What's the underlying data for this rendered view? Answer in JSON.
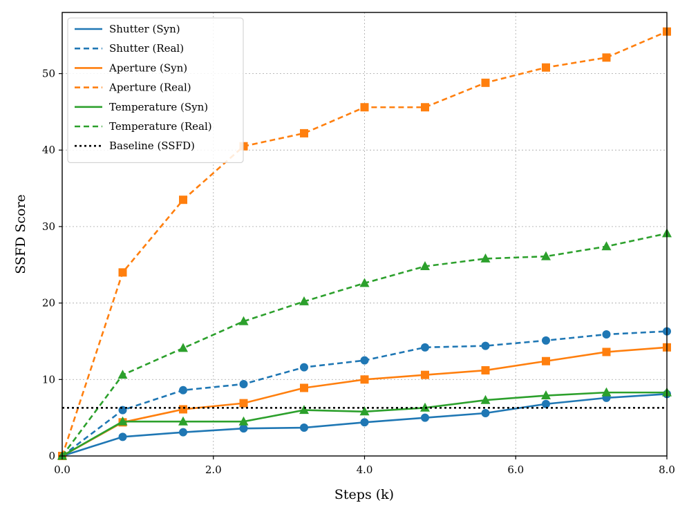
{
  "chart_data": {
    "type": "line",
    "title": "",
    "xlabel": "Steps (k)",
    "ylabel": "SSFD Score",
    "xlim": [
      0,
      8
    ],
    "ylim": [
      0,
      58
    ],
    "xticks": [
      0,
      2,
      4,
      6,
      8
    ],
    "xtick_labels": [
      "0.0",
      "2.0",
      "4.0",
      "6.0",
      "8.0"
    ],
    "yticks": [
      0,
      10,
      20,
      30,
      40,
      50
    ],
    "ytick_labels": [
      "0",
      "10",
      "20",
      "30",
      "40",
      "50"
    ],
    "grid": true,
    "legend_position": "top-left",
    "x": [
      0,
      0.8,
      1.6,
      2.4,
      3.2,
      4.0,
      4.8,
      5.6,
      6.4,
      7.2,
      8.0
    ],
    "series": [
      {
        "name": "Shutter (Syn)",
        "color": "#1f77b4",
        "dash": "solid",
        "marker": "circle",
        "values": [
          0,
          2.5,
          3.1,
          3.6,
          3.7,
          4.4,
          5.0,
          5.6,
          6.8,
          7.6,
          8.1
        ]
      },
      {
        "name": "Shutter (Real)",
        "color": "#1f77b4",
        "dash": "dashed",
        "marker": "circle",
        "values": [
          0,
          6.0,
          8.6,
          9.4,
          11.6,
          12.5,
          14.2,
          14.4,
          15.1,
          15.9,
          16.3
        ]
      },
      {
        "name": "Aperture (Syn)",
        "color": "#ff7f0e",
        "dash": "solid",
        "marker": "square",
        "values": [
          0,
          4.4,
          6.1,
          6.9,
          8.9,
          10.0,
          10.6,
          11.2,
          12.4,
          13.6,
          14.2
        ]
      },
      {
        "name": "Aperture (Real)",
        "color": "#ff7f0e",
        "dash": "dashed",
        "marker": "square",
        "values": [
          0,
          24.0,
          33.5,
          40.5,
          42.2,
          45.6,
          45.6,
          48.8,
          50.8,
          52.1,
          55.5
        ]
      },
      {
        "name": "Temperature (Syn)",
        "color": "#2ca02c",
        "dash": "solid",
        "marker": "triangle",
        "values": [
          0,
          4.5,
          4.5,
          4.5,
          6.0,
          5.8,
          6.3,
          7.3,
          7.9,
          8.3,
          8.3
        ]
      },
      {
        "name": "Temperature (Real)",
        "color": "#2ca02c",
        "dash": "dashed",
        "marker": "triangle",
        "values": [
          0,
          10.6,
          14.1,
          17.6,
          20.2,
          22.6,
          24.8,
          25.8,
          26.1,
          27.4,
          29.1
        ]
      },
      {
        "name": "Baseline (SSFD)",
        "color": "#000000",
        "dash": "dotted",
        "marker": "none",
        "constant": 6.3
      }
    ]
  }
}
